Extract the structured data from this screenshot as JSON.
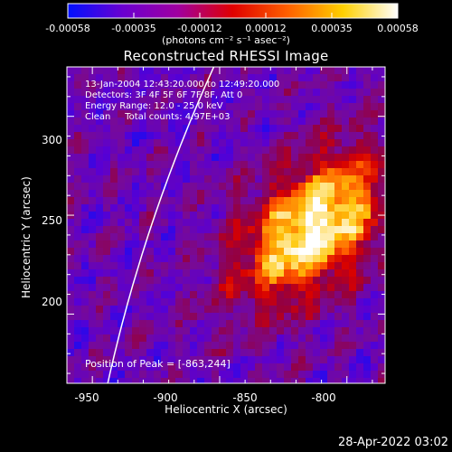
{
  "chart_data": {
    "type": "heatmap",
    "title": "Reconstructed RHESSI Image",
    "xlabel": "Heliocentric X (arcsec)",
    "ylabel": "Heliocentric Y (arcsec)",
    "xlim": [
      -960,
      -835
    ],
    "ylim": [
      165,
      325
    ],
    "xticks": [
      -950,
      -900,
      -850,
      -800
    ],
    "xtick_labels": [
      "-950",
      "-900",
      "-850",
      "-800"
    ],
    "yticks": [
      200,
      250,
      300
    ],
    "ytick_labels": [
      "200",
      "250",
      "300"
    ],
    "colorbar": {
      "min": -0.00058,
      "max": 0.00058,
      "ticks": [
        "-0.00058",
        "-0.00035",
        "-0.00012",
        "0.00012",
        "0.00035",
        "0.00058"
      ],
      "unit_label": "(photons cm⁻² s⁻¹ asec⁻²)",
      "colors": [
        "#0010ff",
        "#6a00d0",
        "#a000a0",
        "#e00000",
        "#ff6000",
        "#ffd000",
        "#ffffff"
      ]
    },
    "info_lines": [
      "13-Jan-2004 12:43:20.000 to 12:49:20.000",
      "Detectors: 3F 4F 5F 6F 7F 8F, Att 0",
      "Energy Range: 12.0 - 25.0 keV",
      "Clean     Total counts: 4.97E+03"
    ],
    "peak_label": "Position of Peak = [-863,244]",
    "peak": {
      "x": -863,
      "y": 244
    },
    "limb": true
  },
  "footer": {
    "timestamp": "28-Apr-2022 03:02"
  }
}
